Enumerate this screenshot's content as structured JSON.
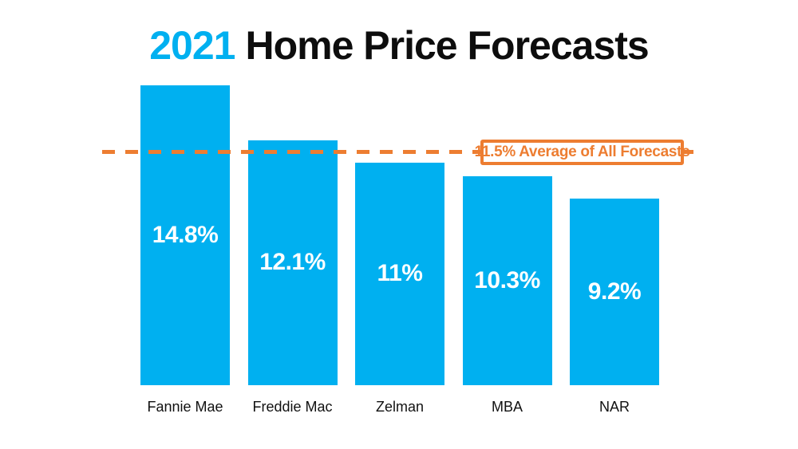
{
  "title": {
    "year": "2021",
    "rest": "Home Price Forecasts"
  },
  "colors": {
    "blue": "#00B0F0",
    "orange": "#ED7D31",
    "bar_value_text": "#FFFFFF",
    "title_text": "#0D0D0D"
  },
  "chart_data": {
    "type": "bar",
    "title": "2021 Home Price Forecasts",
    "categories": [
      "Fannie Mae",
      "Freddie Mac",
      "Zelman",
      "MBA",
      "NAR"
    ],
    "values": [
      14.8,
      12.1,
      11,
      10.3,
      9.2
    ],
    "value_labels": [
      "14.8%",
      "12.1%",
      "11%",
      "10.3%",
      "9.2%"
    ],
    "unit": "%",
    "bar_color": "#00B0F0",
    "ylim": [
      0,
      18.7
    ],
    "grid": false,
    "legend": false,
    "average_line": {
      "value": 11.5,
      "label": "11.5% Average of All Forecasts",
      "color": "#ED7D31",
      "style": "dashed"
    }
  }
}
